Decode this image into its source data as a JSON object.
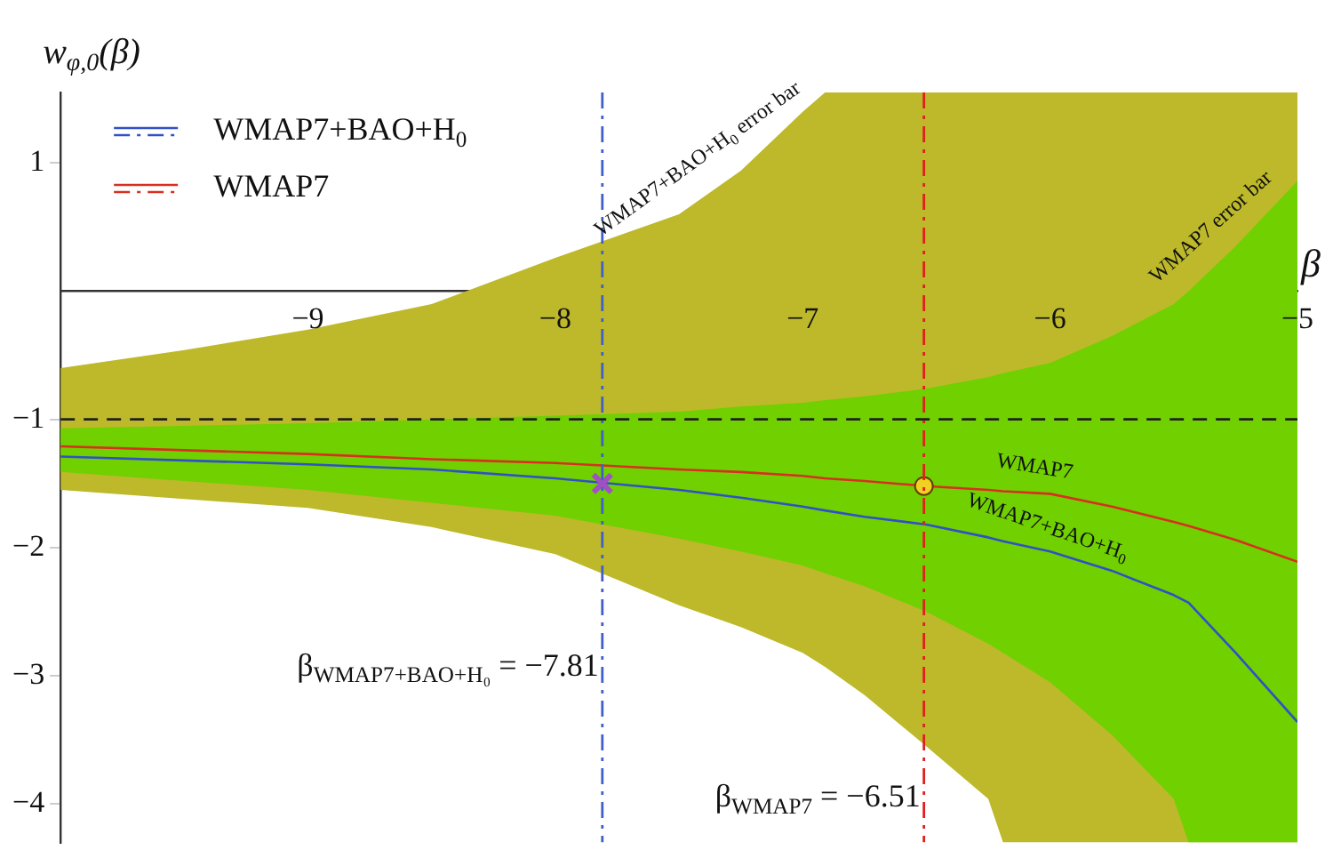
{
  "chart_data": {
    "type": "line",
    "xlabel": "β",
    "ylabel": "w$_{φ,0}$(β)",
    "x": [
      -10,
      -9.5,
      -9,
      -8.5,
      -8,
      -7.5,
      -7.25,
      -7,
      -6.91,
      -6.75,
      -6.5,
      -6.25,
      -6.19,
      -6,
      -5.75,
      -5.5,
      -5.44,
      -5.25,
      -5
    ],
    "series": [
      {
        "name": "WMAP7+BAO+H$_{0}$",
        "color": "#3050c8",
        "values": [
          -1.29,
          -1.32,
          -1.35,
          -1.39,
          -1.46,
          -1.55,
          -1.61,
          -1.68,
          -1.71,
          -1.76,
          -1.82,
          -1.92,
          -1.95,
          -2.03,
          -2.18,
          -2.37,
          -2.43,
          -2.82,
          -3.36
        ],
        "upper": [
          -0.6,
          -0.46,
          -0.3,
          -0.1,
          0.26,
          0.6,
          0.94,
          1.4,
          1.55,
          1.55,
          1.55,
          1.55,
          1.55,
          1.55,
          1.55,
          1.55,
          1.55,
          1.55,
          1.55
        ],
        "lower": [
          -1.55,
          -1.62,
          -1.69,
          -1.84,
          -2.05,
          -2.45,
          -2.62,
          -2.82,
          -2.93,
          -3.15,
          -3.55,
          -3.96,
          -4.3,
          -4.3,
          -4.3,
          -4.3,
          -4.3,
          -4.3,
          -4.3
        ]
      },
      {
        "name": "WMAP7",
        "color": "#d83020",
        "values": [
          -1.21,
          -1.24,
          -1.27,
          -1.31,
          -1.34,
          -1.39,
          -1.41,
          -1.44,
          -1.46,
          -1.48,
          -1.52,
          -1.55,
          -1.56,
          -1.58,
          -1.68,
          -1.8,
          -1.83,
          -1.94,
          -2.11
        ],
        "upper": [
          -1.07,
          -1.05,
          -1.03,
          -1,
          -0.97,
          -0.94,
          -0.9,
          -0.87,
          -0.85,
          -0.82,
          -0.76,
          -0.67,
          -0.64,
          -0.56,
          -0.35,
          -0.1,
          0,
          0.35,
          0.86
        ],
        "lower": [
          -1.41,
          -1.48,
          -1.55,
          -1.65,
          -1.75,
          -1.93,
          -2.03,
          -2.14,
          -2.2,
          -2.3,
          -2.5,
          -2.75,
          -2.82,
          -3.05,
          -3.46,
          -3.96,
          -4.3,
          -4.3,
          -4.3
        ]
      },
      {
        "type": "scatter",
        "x": [
          -7.81
        ],
        "values": [
          -1.5
        ],
        "color": "#a050c0",
        "marker": "cross"
      },
      {
        "type": "scatter",
        "x": [
          -6.51
        ],
        "values": [
          -1.52
        ],
        "color": "#f0d020",
        "marker": "circle"
      }
    ],
    "ref_lines": [
      {
        "axis": "x",
        "value": -7.81,
        "label": "β$_{WMAP7+BAO+H₀}$ = −7.81",
        "color": "#4060c8",
        "line_style": "dashdot"
      },
      {
        "axis": "x",
        "value": -6.51,
        "label": "β$_{WMAP7}$ = −6.51",
        "color": "#e02020",
        "line_style": "dashdot"
      },
      {
        "axis": "y",
        "value": -1,
        "color": "#202020",
        "line_style": "dashed"
      }
    ],
    "annotations": [
      "WMAP7+BAO+H$_{0}$ error bar",
      "WMAP7 error bar",
      "WMAP7",
      "WMAP7+BAO+H$_{0}$"
    ],
    "xlim": [
      -10,
      -5
    ],
    "ylim": [
      -4.3,
      1.55
    ],
    "xticks": [
      -9,
      -8,
      -7,
      -6,
      -5
    ],
    "yticks": [
      -4,
      -3,
      -2,
      -1,
      1
    ],
    "grid": false,
    "legend": "top left"
  }
}
